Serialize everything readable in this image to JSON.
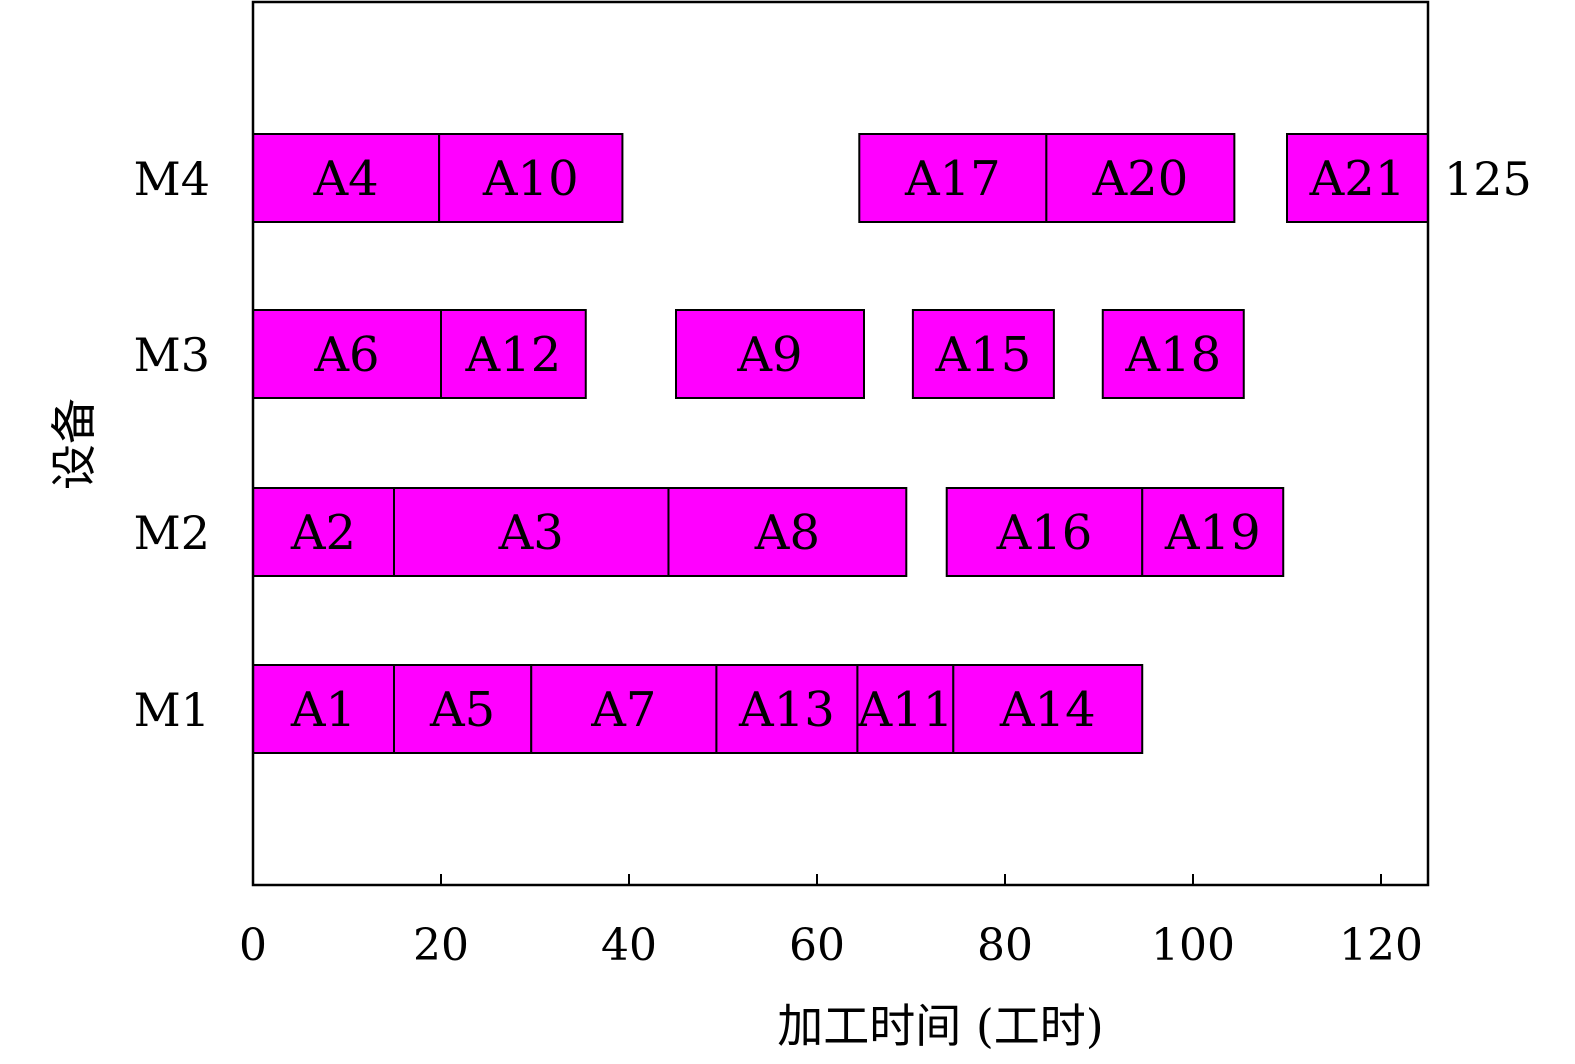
{
  "chart_data": {
    "type": "gantt",
    "xlabel": "加工时间 (工时)",
    "ylabel": "设备",
    "xlim": [
      0,
      125
    ],
    "xticks": [
      0,
      20,
      40,
      60,
      80,
      100,
      120
    ],
    "tick_labels": [
      "0",
      "20",
      "40",
      "60",
      "80",
      "100",
      "120"
    ],
    "machines": [
      "M1",
      "M2",
      "M3",
      "M4"
    ],
    "bar_color": "#ff00ff",
    "makespan_label": "125",
    "makespan_value": 125,
    "makespan_machine": "M4",
    "tasks": [
      {
        "label": "A1",
        "machine": "M1",
        "start": 0,
        "end": 15
      },
      {
        "label": "A5",
        "machine": "M1",
        "start": 15,
        "end": 29.6
      },
      {
        "label": "A7",
        "machine": "M1",
        "start": 29.6,
        "end": 49.3
      },
      {
        "label": "A13",
        "machine": "M1",
        "start": 49.3,
        "end": 64.3
      },
      {
        "label": "A11",
        "machine": "M1",
        "start": 64.3,
        "end": 74.5
      },
      {
        "label": "A14",
        "machine": "M1",
        "start": 74.5,
        "end": 94.6
      },
      {
        "label": "A2",
        "machine": "M2",
        "start": 0,
        "end": 15
      },
      {
        "label": "A3",
        "machine": "M2",
        "start": 15,
        "end": 44.2
      },
      {
        "label": "A8",
        "machine": "M2",
        "start": 44.2,
        "end": 69.5
      },
      {
        "label": "A16",
        "machine": "M2",
        "start": 73.8,
        "end": 94.6
      },
      {
        "label": "A19",
        "machine": "M2",
        "start": 94.6,
        "end": 109.6
      },
      {
        "label": "A6",
        "machine": "M3",
        "start": 0,
        "end": 20
      },
      {
        "label": "A12",
        "machine": "M3",
        "start": 20,
        "end": 35.4
      },
      {
        "label": "A9",
        "machine": "M3",
        "start": 45,
        "end": 65
      },
      {
        "label": "A15",
        "machine": "M3",
        "start": 70.2,
        "end": 85.2
      },
      {
        "label": "A18",
        "machine": "M3",
        "start": 90.4,
        "end": 105.4
      },
      {
        "label": "A4",
        "machine": "M4",
        "start": 0,
        "end": 19.8
      },
      {
        "label": "A10",
        "machine": "M4",
        "start": 19.8,
        "end": 39.3
      },
      {
        "label": "A17",
        "machine": "M4",
        "start": 64.5,
        "end": 84.4
      },
      {
        "label": "A20",
        "machine": "M4",
        "start": 84.4,
        "end": 104.4
      },
      {
        "label": "A21",
        "machine": "M4",
        "start": 110,
        "end": 125
      }
    ]
  }
}
